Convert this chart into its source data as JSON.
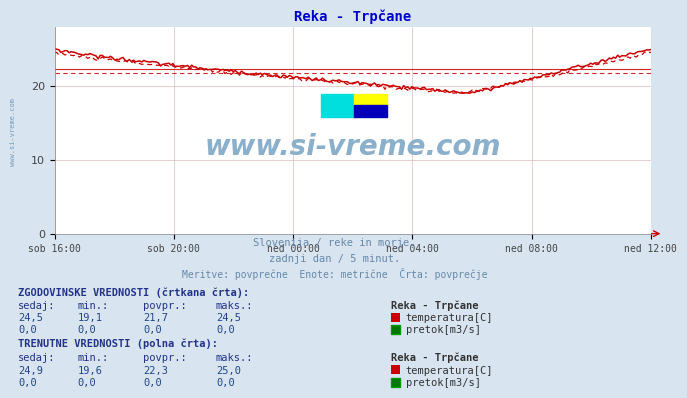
{
  "title": "Reka - Trpčane",
  "title_color": "#0000cc",
  "bg_color": "#d8e4f0",
  "plot_bg_color": "#ffffff",
  "grid_color_major": "#ddaaaa",
  "grid_color_minor": "#eedddd",
  "xlabel_ticks": [
    "sob 16:00",
    "sob 20:00",
    "ned 00:00",
    "ned 04:00",
    "ned 08:00",
    "ned 12:00"
  ],
  "ylabel_ticks": [
    0,
    10,
    20
  ],
  "ylim": [
    0,
    28
  ],
  "xlim": [
    0,
    287
  ],
  "temp_color": "#cc0000",
  "pretok_color": "#007700",
  "watermark_text": "www.si-vreme.com",
  "watermark_color": "#8ab0cc",
  "subtitle1": "Slovenija / reke in morje.",
  "subtitle2": "zadnji dan / 5 minut.",
  "subtitle3": "Meritve: povprečne  Enote: metrične  Črta: povprečje",
  "subtitle_color": "#6688aa",
  "table_header_color": "#223388",
  "table_value_color": "#224488",
  "hist_label": "ZGODOVINSKE VREDNOSTI (črtkana črta):",
  "curr_label": "TRENUTNE VREDNOSTI (polna črta):",
  "col_headers": [
    "sedaj:",
    "min.:",
    "povpr.:",
    "maks.:"
  ],
  "hist_temp": [
    24.5,
    19.1,
    21.7,
    24.5
  ],
  "hist_pretok": [
    0.0,
    0.0,
    0.0,
    0.0
  ],
  "curr_temp": [
    24.9,
    19.6,
    22.3,
    25.0
  ],
  "curr_pretok": [
    0.0,
    0.0,
    0.0,
    0.0
  ],
  "station_label": "Reka - Trpčane",
  "temp_label": "temperatura[C]",
  "pretok_label": "pretok[m3/s]",
  "avg_dashed_value": 21.7,
  "avg_solid_value": 22.3,
  "left_label": "www.si-vreme.com",
  "left_label_color": "#7799bb"
}
